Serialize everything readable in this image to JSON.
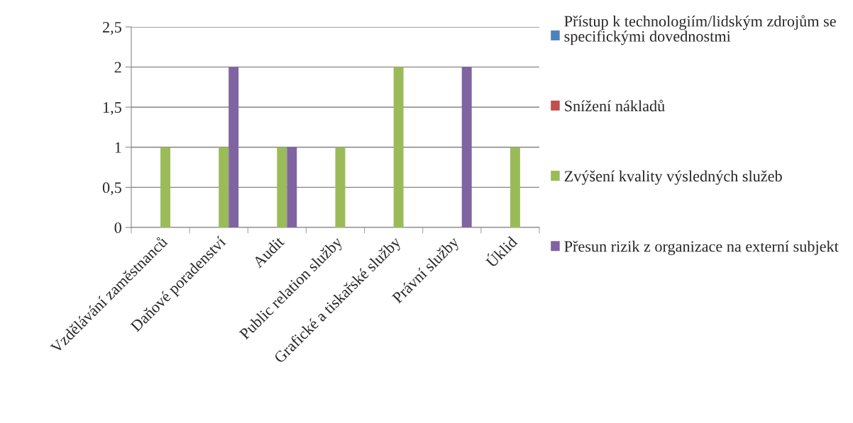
{
  "chart_data": {
    "type": "bar",
    "categories": [
      "Vzdělávání zaměstnanců",
      "Daňové poradenství",
      "Audit",
      "Public relation služby",
      "Grafické a tiskařské služby",
      "Právní služby",
      "Úklid"
    ],
    "series": [
      {
        "name": "Přístup k technologiím/lidským zdrojům se specifickými dovednostmi",
        "color": "#4f81bd",
        "values": [
          0,
          0,
          0,
          0,
          0,
          0,
          0
        ]
      },
      {
        "name": "Snížení nákladů",
        "color": "#c0504d",
        "values": [
          0,
          0,
          0,
          0,
          0,
          0,
          0
        ]
      },
      {
        "name": "Zvýšení kvality výsledných služeb",
        "color": "#9bbb59",
        "values": [
          1,
          1,
          1,
          1,
          2,
          0,
          1
        ]
      },
      {
        "name": "Přesun rizik z organizace na externí subjekt",
        "color": "#8064a2",
        "values": [
          0,
          2,
          1,
          0,
          0,
          2,
          0
        ]
      }
    ],
    "ylim": [
      0,
      2.5
    ],
    "yticks": [
      0,
      {
        "value": 0.5,
        "label": "0,5"
      },
      1,
      {
        "value": 1.5,
        "label": "1,5"
      },
      2,
      {
        "value": 2.5,
        "label": "2,5"
      }
    ],
    "grid": "y",
    "legend": "right"
  }
}
